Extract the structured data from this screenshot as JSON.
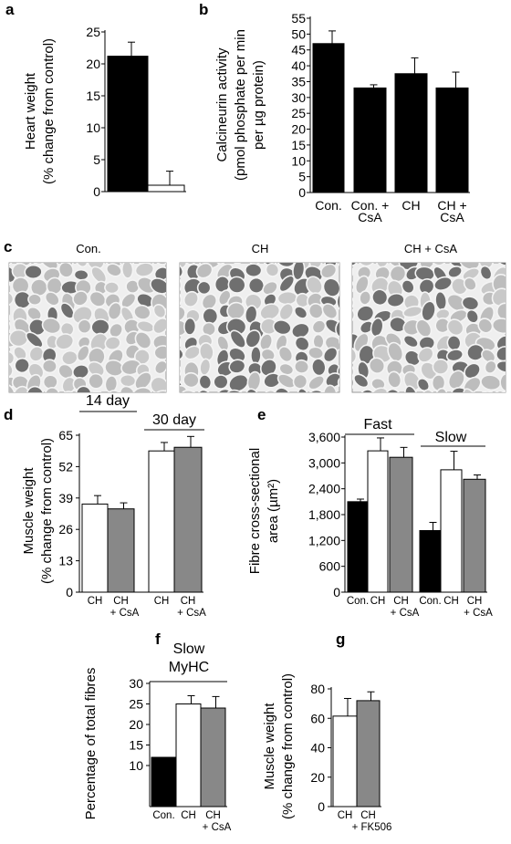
{
  "colors": {
    "black": "#000000",
    "white": "#ffffff",
    "grey": "#888888",
    "tissue_bg": "#d9d9d9",
    "fibre_light": "#bdbdbd",
    "fibre_dark": "#6f6f6f"
  },
  "chart_data": [
    {
      "id": "a",
      "type": "bar",
      "panel_label": "a",
      "ylabel": [
        "Heart weight",
        "(% change from control)"
      ],
      "ylim": [
        0,
        25
      ],
      "yticks": [
        0,
        5,
        10,
        15,
        20,
        25
      ],
      "bars": [
        {
          "value": 21.2,
          "error": 2.2,
          "fill": "black",
          "label": ""
        },
        {
          "value": 1.0,
          "error": 2.2,
          "fill": "white",
          "label": ""
        }
      ]
    },
    {
      "id": "b",
      "type": "bar",
      "panel_label": "b",
      "ylabel": [
        "Calcineurin activity",
        "(pmol phosphate per min",
        "per µg protein)"
      ],
      "ylim": [
        0,
        55
      ],
      "yticks": [
        0,
        5,
        10,
        15,
        20,
        25,
        30,
        35,
        40,
        45,
        50,
        55
      ],
      "bars": [
        {
          "value": 47,
          "error": 4,
          "fill": "black",
          "label": [
            "Con."
          ]
        },
        {
          "value": 33,
          "error": 1,
          "fill": "black",
          "label": [
            "Con. +",
            "CsA"
          ]
        },
        {
          "value": 37.5,
          "error": 5,
          "fill": "black",
          "label": [
            "CH"
          ]
        },
        {
          "value": 33,
          "error": 5,
          "fill": "black",
          "label": [
            "CH +",
            "CsA"
          ]
        }
      ]
    },
    {
      "id": "d",
      "type": "bar",
      "panel_label": "d",
      "ylabel": [
        "Muscle weight",
        "(% change from control)"
      ],
      "ylim": [
        0,
        65
      ],
      "yticks": [
        0,
        13,
        26,
        39,
        52,
        65
      ],
      "groups": [
        "14 day",
        "30 day"
      ],
      "bars": [
        {
          "value": 36.5,
          "error": 3.5,
          "fill": "white",
          "label": [
            "CH"
          ]
        },
        {
          "value": 34.5,
          "error": 2.5,
          "fill": "grey",
          "label": [
            "CH",
            "+ CsA"
          ]
        },
        {
          "value": 58.5,
          "error": 3.5,
          "fill": "white",
          "label": [
            "CH"
          ]
        },
        {
          "value": 60,
          "error": 4.5,
          "fill": "grey",
          "label": [
            "CH",
            "+ CsA"
          ]
        }
      ]
    },
    {
      "id": "e",
      "type": "bar",
      "panel_label": "e",
      "ylabel": [
        "Fibre cross-sectional",
        "area (µm²)"
      ],
      "ylim": [
        0,
        3600
      ],
      "yticks": [
        "0",
        "600",
        "1,200",
        "1,800",
        "2,400",
        "3,000",
        "3,600"
      ],
      "groups": [
        "Fast",
        "Slow"
      ],
      "bars": [
        {
          "value": 2100,
          "error": 60,
          "fill": "black",
          "label": [
            "Con."
          ]
        },
        {
          "value": 3280,
          "error": 300,
          "fill": "white",
          "label": [
            "CH"
          ]
        },
        {
          "value": 3130,
          "error": 230,
          "fill": "grey",
          "label": [
            "CH",
            "+ CsA"
          ]
        },
        {
          "value": 1430,
          "error": 190,
          "fill": "black",
          "label": [
            "Con."
          ]
        },
        {
          "value": 2840,
          "error": 430,
          "fill": "white",
          "label": [
            "CH"
          ]
        },
        {
          "value": 2620,
          "error": 100,
          "fill": "grey",
          "label": [
            "CH",
            "+ CsA"
          ]
        }
      ]
    },
    {
      "id": "f",
      "type": "bar",
      "panel_label": "f",
      "ylabel": [
        "Percentage of total fibres"
      ],
      "ylim": [
        0,
        30
      ],
      "yticks": [
        10,
        15,
        20,
        25,
        30
      ],
      "groups": [
        "Slow MyHC"
      ],
      "bars": [
        {
          "value": 12,
          "error": 0,
          "fill": "black",
          "label": [
            "Con."
          ]
        },
        {
          "value": 25,
          "error": 2,
          "fill": "white",
          "label": [
            "CH"
          ]
        },
        {
          "value": 24,
          "error": 2.8,
          "fill": "grey",
          "label": [
            "CH",
            "+ CsA"
          ]
        }
      ]
    },
    {
      "id": "g",
      "type": "bar",
      "panel_label": "g",
      "ylabel": [
        "Muscle weight",
        "(% change from control)"
      ],
      "ylim": [
        0,
        80
      ],
      "yticks": [
        0,
        20,
        40,
        60,
        80
      ],
      "bars": [
        {
          "value": 61.5,
          "error": 12,
          "fill": "white",
          "label": [
            "CH"
          ]
        },
        {
          "value": 72,
          "error": 6,
          "fill": "grey",
          "label": [
            "CH",
            "+ FK506"
          ]
        }
      ]
    }
  ],
  "micrographs": {
    "panel_label": "c",
    "titles": [
      "Con.",
      "CH",
      "CH + CsA"
    ]
  }
}
